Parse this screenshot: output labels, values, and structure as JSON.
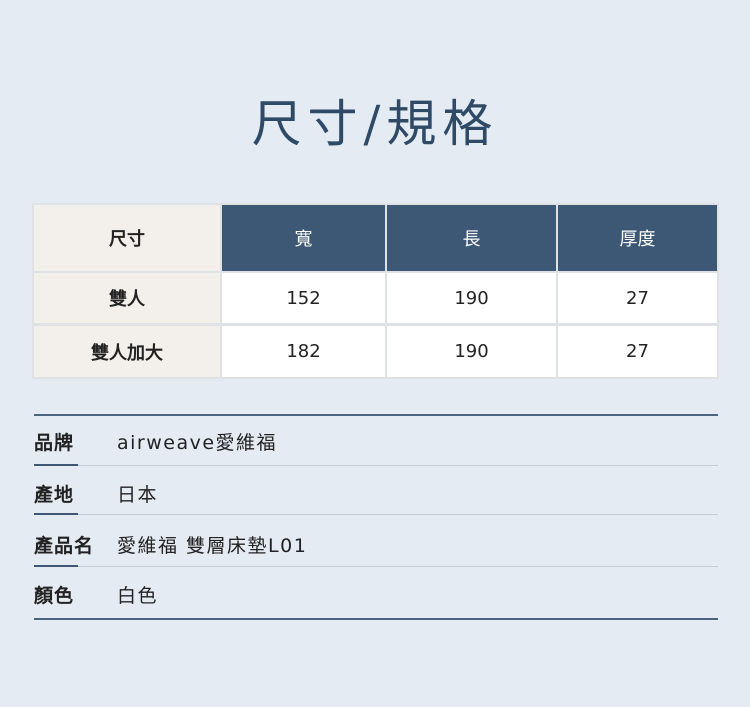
{
  "title": "尺寸/規格",
  "table": {
    "headers": [
      "尺寸",
      "寬",
      "長",
      "厚度"
    ],
    "rows": [
      [
        "雙人",
        "152",
        "190",
        "27"
      ],
      [
        "雙人加大",
        "182",
        "190",
        "27"
      ]
    ]
  },
  "specs": [
    {
      "label": "品牌",
      "value": "airweave愛維福"
    },
    {
      "label": "產地",
      "value": "日本"
    },
    {
      "label": "產品名",
      "value": "愛維福 雙層床墊L01"
    },
    {
      "label": "顏色",
      "value": "白色"
    }
  ]
}
